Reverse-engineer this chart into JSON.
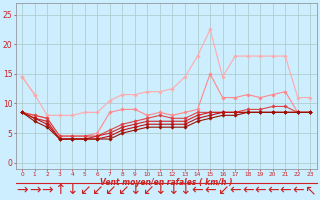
{
  "xlabel": "Vent moyen/en rafales ( km/h )",
  "x": [
    0,
    1,
    2,
    3,
    4,
    5,
    6,
    7,
    8,
    9,
    10,
    11,
    12,
    13,
    14,
    15,
    16,
    17,
    18,
    19,
    20,
    21,
    22,
    23
  ],
  "ylim": [
    -1,
    27
  ],
  "yticks": [
    0,
    5,
    10,
    15,
    20,
    25
  ],
  "bg_color": "#cceeff",
  "grid_color": "#aac8c8",
  "lines": [
    {
      "y": [
        14.5,
        11.5,
        null,
        null,
        null,
        null,
        null,
        null,
        null,
        null,
        null,
        null,
        null,
        null,
        null,
        null,
        null,
        null,
        null,
        null,
        null,
        null,
        null,
        null
      ],
      "color": "#ffaaaa",
      "marker": "D",
      "markersize": 1.8,
      "linewidth": 0.8
    },
    {
      "y": [
        14.5,
        11.5,
        8.0,
        8.0,
        8.0,
        8.5,
        8.5,
        10.5,
        11.5,
        11.5,
        12.0,
        12.0,
        12.5,
        14.5,
        18.0,
        22.5,
        14.5,
        18.0,
        18.0,
        18.0,
        18.0,
        18.0,
        11.0,
        11.0
      ],
      "color": "#ffaaaa",
      "marker": "D",
      "markersize": 1.8,
      "linewidth": 0.8
    },
    {
      "y": [
        8.5,
        8.0,
        7.5,
        4.5,
        4.5,
        4.5,
        5.0,
        8.5,
        9.0,
        9.0,
        8.0,
        8.5,
        8.0,
        8.5,
        9.0,
        15.0,
        11.0,
        11.0,
        11.5,
        11.0,
        11.5,
        12.0,
        8.5,
        8.5
      ],
      "color": "#ff8888",
      "marker": "D",
      "markersize": 1.8,
      "linewidth": 0.8
    },
    {
      "y": [
        8.5,
        8.0,
        7.5,
        4.5,
        4.5,
        4.5,
        4.5,
        5.5,
        6.5,
        7.0,
        7.5,
        8.0,
        7.5,
        7.5,
        8.5,
        8.5,
        8.5,
        8.5,
        9.0,
        9.0,
        9.5,
        9.5,
        8.5,
        8.5
      ],
      "color": "#dd4444",
      "marker": "D",
      "markersize": 1.8,
      "linewidth": 0.8
    },
    {
      "y": [
        8.5,
        7.5,
        7.0,
        4.0,
        4.0,
        4.0,
        4.5,
        5.0,
        6.0,
        6.5,
        7.0,
        7.0,
        7.0,
        7.0,
        8.0,
        8.5,
        8.5,
        8.5,
        8.5,
        8.5,
        8.5,
        8.5,
        8.5,
        8.5
      ],
      "color": "#cc2222",
      "marker": "D",
      "markersize": 1.8,
      "linewidth": 0.8
    },
    {
      "y": [
        8.5,
        7.5,
        6.5,
        4.0,
        4.0,
        4.0,
        4.0,
        4.5,
        5.5,
        6.0,
        6.5,
        6.5,
        6.5,
        6.5,
        7.5,
        8.0,
        8.5,
        8.5,
        8.5,
        8.5,
        8.5,
        8.5,
        8.5,
        8.5
      ],
      "color": "#bb1111",
      "marker": "D",
      "markersize": 1.8,
      "linewidth": 0.8
    },
    {
      "y": [
        8.5,
        7.0,
        6.0,
        4.0,
        4.0,
        4.0,
        4.0,
        4.0,
        5.0,
        5.5,
        6.0,
        6.0,
        6.0,
        6.0,
        7.0,
        7.5,
        8.0,
        8.0,
        8.5,
        8.5,
        8.5,
        8.5,
        8.5,
        8.5
      ],
      "color": "#991100",
      "marker": "D",
      "markersize": 1.8,
      "linewidth": 0.8
    }
  ],
  "arrow_symbols": [
    "→",
    "→",
    "→",
    "↑",
    "↓",
    "↙",
    "↙",
    "↙",
    "↙",
    "↓",
    "↙",
    "↓",
    "↓",
    "↓",
    "←",
    "←",
    "↙",
    "←",
    "←",
    "←",
    "←",
    "←",
    "←",
    "↖"
  ],
  "arrow_color": "#cc2222",
  "label_color": "#cc2222",
  "tick_color": "#cc2222"
}
